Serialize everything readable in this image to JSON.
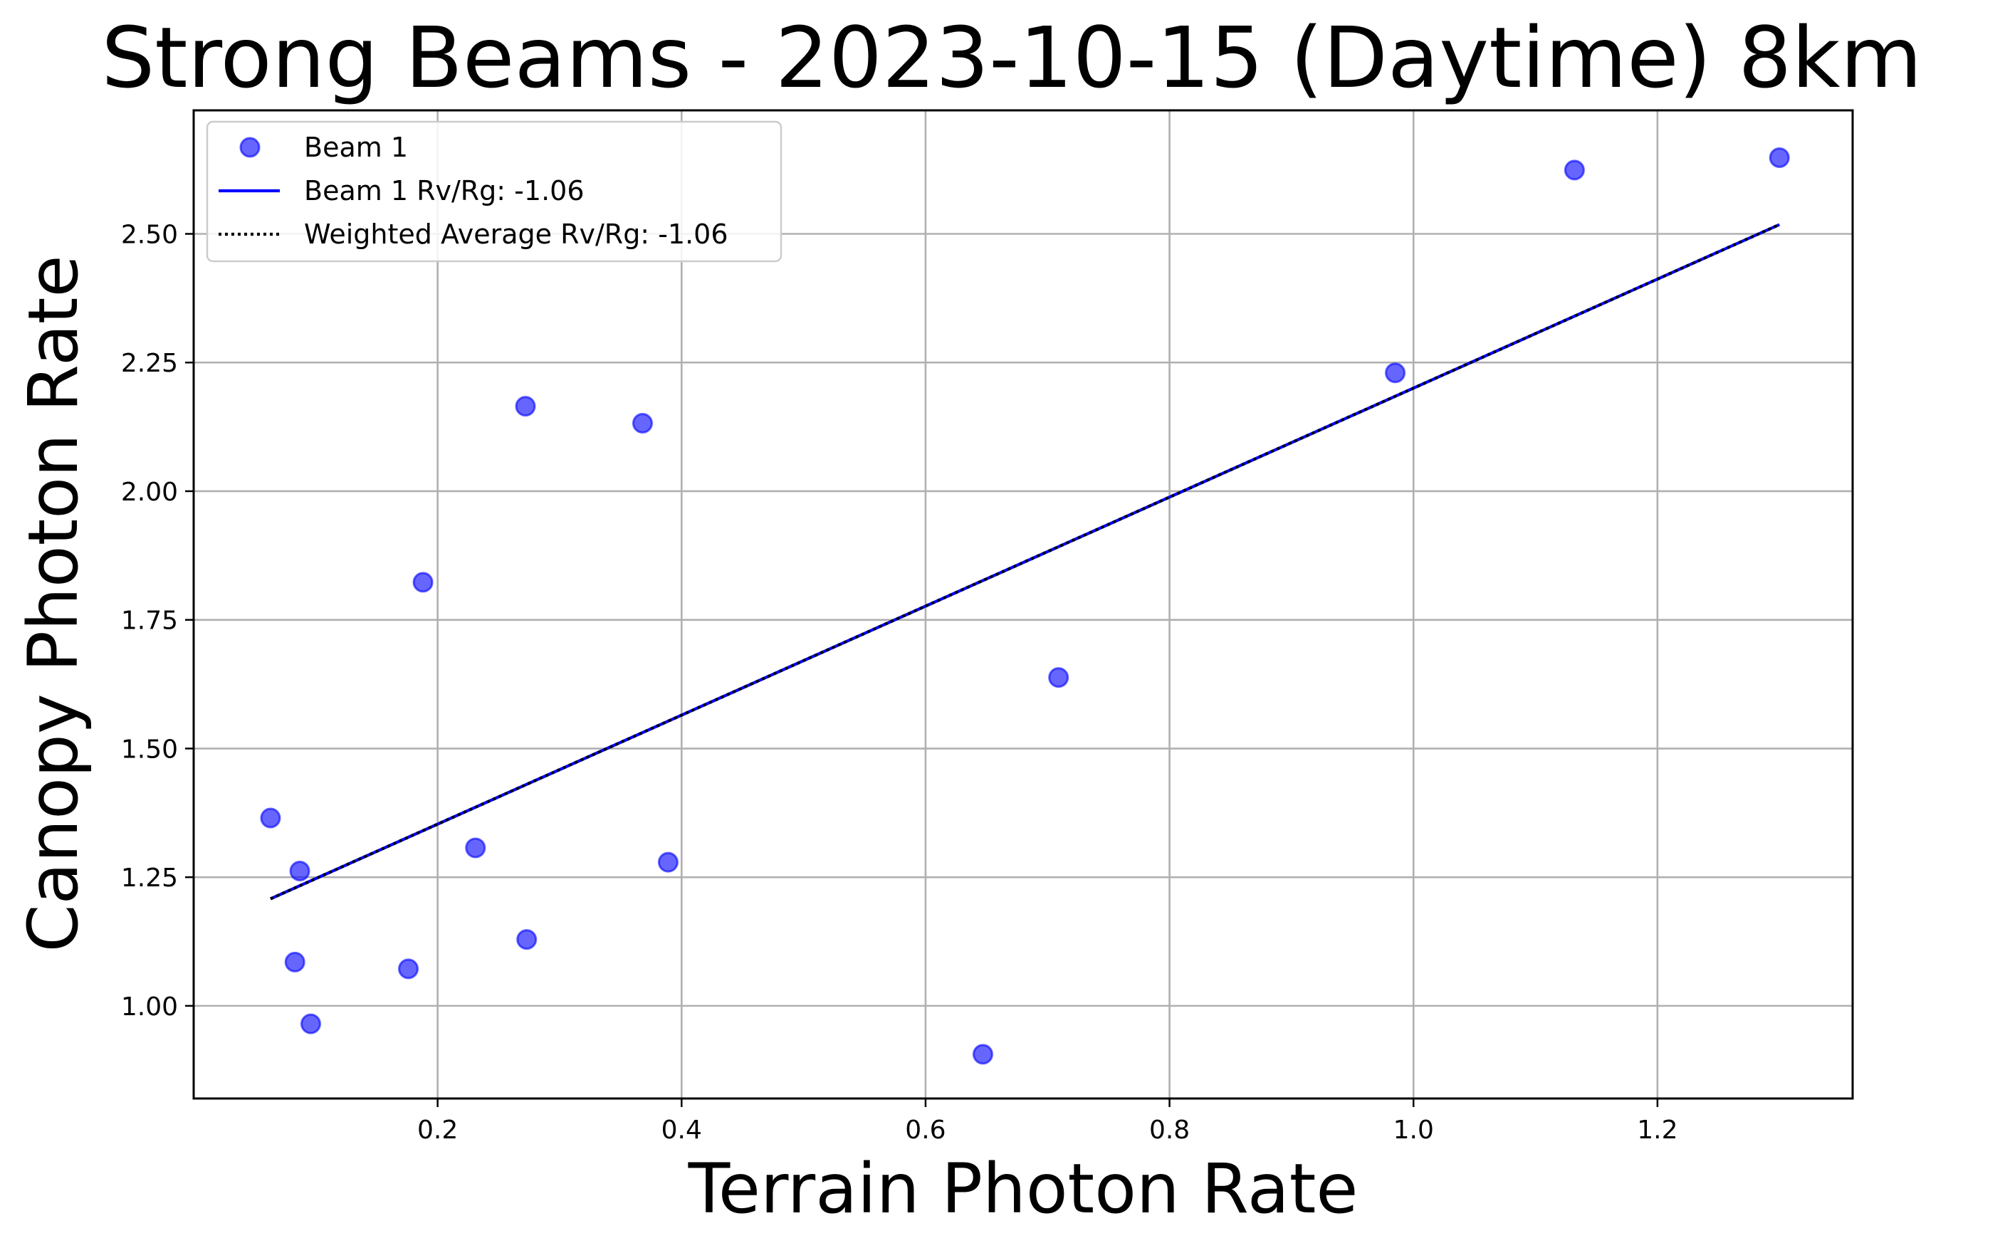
{
  "chart_data": {
    "type": "scatter",
    "title": "Strong Beams - 2023-10-15 (Daytime) 8km",
    "xlabel": "Terrain Photon Rate",
    "ylabel": "Canopy Photon Rate",
    "xlim": [
      0.0,
      1.36
    ],
    "ylim": [
      0.82,
      2.74
    ],
    "xticks": [
      0.2,
      0.4,
      0.6,
      0.8,
      1.0,
      1.2
    ],
    "xtick_labels": [
      "0.2",
      "0.4",
      "0.6",
      "0.8",
      "1.0",
      "1.2"
    ],
    "yticks": [
      1.0,
      1.25,
      1.5,
      1.75,
      2.0,
      2.25,
      2.5
    ],
    "ytick_labels": [
      "1.00",
      "1.25",
      "1.50",
      "1.75",
      "2.00",
      "2.25",
      "2.50"
    ],
    "grid": true,
    "legend_position": "top-left",
    "series": [
      {
        "name": "Beam 1",
        "kind": "scatter",
        "color": "#0000ff",
        "points": [
          {
            "x": 0.063,
            "y": 1.365
          },
          {
            "x": 0.087,
            "y": 1.262
          },
          {
            "x": 0.083,
            "y": 1.085
          },
          {
            "x": 0.096,
            "y": 0.965
          },
          {
            "x": 0.176,
            "y": 1.072
          },
          {
            "x": 0.188,
            "y": 1.823
          },
          {
            "x": 0.231,
            "y": 1.307
          },
          {
            "x": 0.272,
            "y": 2.165
          },
          {
            "x": 0.273,
            "y": 1.129
          },
          {
            "x": 0.368,
            "y": 2.132
          },
          {
            "x": 0.389,
            "y": 1.279
          },
          {
            "x": 0.647,
            "y": 0.906
          },
          {
            "x": 0.709,
            "y": 1.638
          },
          {
            "x": 0.985,
            "y": 2.23
          },
          {
            "x": 1.132,
            "y": 2.624
          },
          {
            "x": 1.3,
            "y": 2.648
          }
        ]
      },
      {
        "name": "Beam 1 Rv/Rg: -1.06",
        "kind": "line",
        "color": "#0000ff",
        "style": "solid",
        "points": [
          {
            "x": 0.063,
            "y": 1.208
          },
          {
            "x": 1.3,
            "y": 2.518
          }
        ]
      },
      {
        "name": "Weighted Average Rv/Rg: -1.06",
        "kind": "line",
        "color": "#000000",
        "style": "dotted",
        "points": [
          {
            "x": 0.063,
            "y": 1.208
          },
          {
            "x": 1.3,
            "y": 2.518
          }
        ]
      }
    ]
  }
}
